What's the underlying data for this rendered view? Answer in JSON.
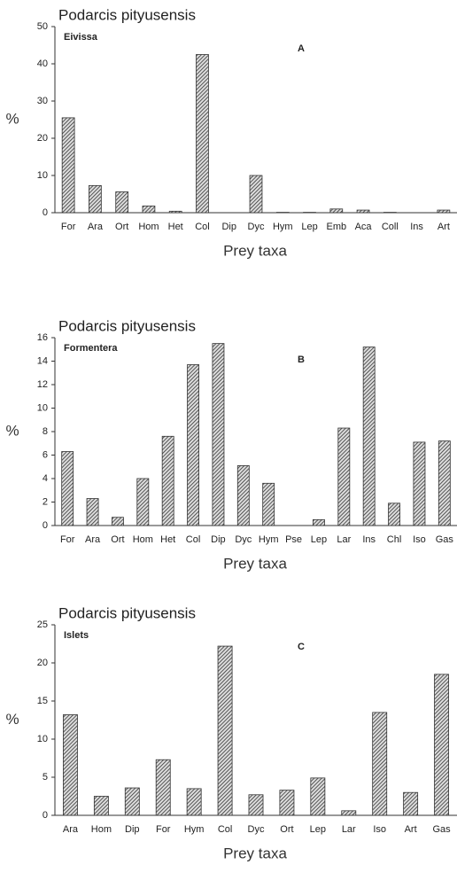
{
  "chart_data": [
    {
      "type": "bar",
      "title": "Podarcis pityusensis",
      "subtitle": "Eivissa",
      "annotation": "A",
      "ylabel": "%",
      "xlabel": "Prey taxa",
      "categories": [
        "For",
        "Ara",
        "Ort",
        "Hom",
        "Het",
        "Col",
        "Dip",
        "Dyc",
        "Hym",
        "Lep",
        "Emb",
        "Aca",
        "Coll",
        "Ins",
        "Art"
      ],
      "values": [
        25.5,
        7.3,
        5.6,
        1.8,
        0.4,
        42.5,
        0,
        10,
        0.1,
        0.1,
        1.0,
        0.7,
        0.1,
        0,
        0.7
      ],
      "color": "#333333",
      "ylim": [
        0,
        50
      ],
      "yticks": [
        0,
        10,
        20,
        30,
        40,
        50
      ]
    },
    {
      "type": "bar",
      "title": "Podarcis pityusensis",
      "subtitle": "Formentera",
      "annotation": "B",
      "ylabel": "%",
      "xlabel": "Prey taxa",
      "categories": [
        "For",
        "Ara",
        "Ort",
        "Hom",
        "Het",
        "Col",
        "Dip",
        "Dyc",
        "Hym",
        "Pse",
        "Lep",
        "Lar",
        "Ins",
        "Chl",
        "Iso",
        "Gas"
      ],
      "values": [
        6.3,
        2.3,
        0.7,
        4.0,
        7.6,
        13.7,
        15.5,
        5.1,
        3.6,
        0,
        0.5,
        8.3,
        15.2,
        1.9,
        7.1,
        7.2
      ],
      "color": "#333333",
      "ylim": [
        0,
        16
      ],
      "yticks": [
        0,
        2,
        4,
        6,
        8,
        10,
        12,
        14,
        16
      ]
    },
    {
      "type": "bar",
      "title": "Podarcis pityusensis",
      "subtitle": "Islets",
      "annotation": "C",
      "ylabel": "%",
      "xlabel": "Prey taxa",
      "categories": [
        "Ara",
        "Hom",
        "Dip",
        "For",
        "Hym",
        "Col",
        "Dyc",
        "Ort",
        "Lep",
        "Lar",
        "Iso",
        "Art",
        "Gas"
      ],
      "values": [
        13.2,
        2.5,
        3.6,
        7.3,
        3.5,
        22.2,
        2.7,
        3.3,
        4.9,
        0.6,
        13.5,
        3.0,
        18.5
      ],
      "color": "#333333",
      "ylim": [
        0,
        25
      ],
      "yticks": [
        0,
        5,
        10,
        15,
        20,
        25
      ]
    }
  ]
}
